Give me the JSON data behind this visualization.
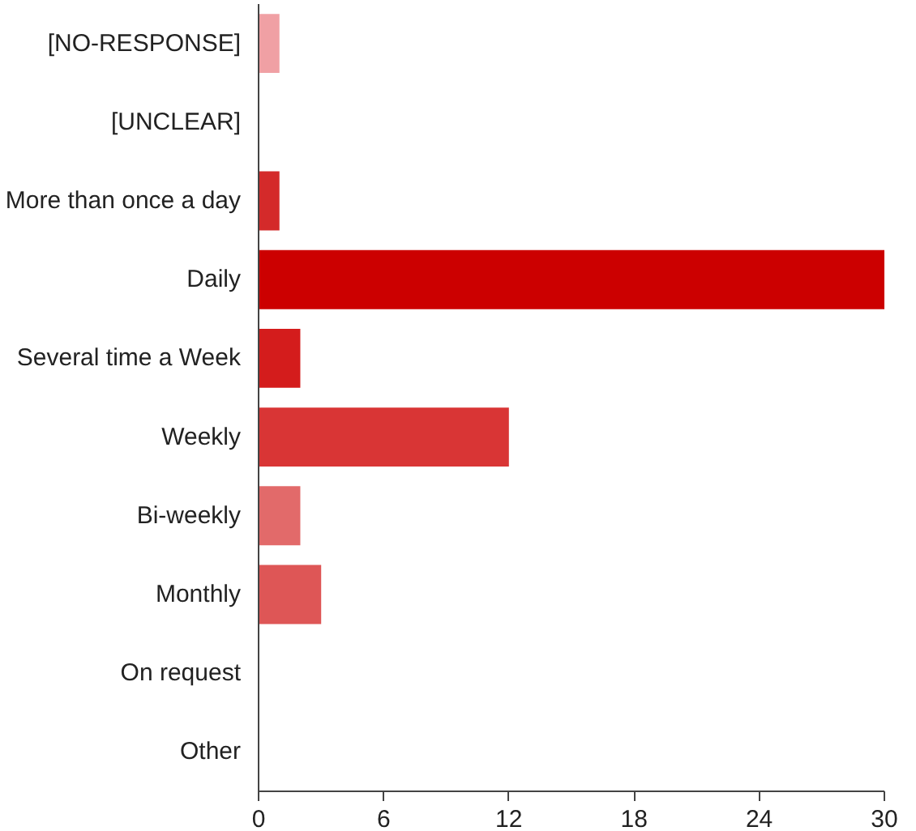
{
  "chart_data": {
    "type": "bar",
    "orientation": "horizontal",
    "categories": [
      "[NO-RESPONSE]",
      "[UNCLEAR]",
      "More than once a day",
      "Daily",
      "Several time a Week",
      "Weekly",
      "Bi-weekly",
      "Monthly",
      "On request",
      "Other"
    ],
    "values": [
      1,
      0,
      1,
      30,
      2,
      12,
      2,
      3,
      0,
      0
    ],
    "colors": [
      "#f0a0a4",
      "#e8b0b0",
      "#d42a2a",
      "#cc0000",
      "#d41c1c",
      "#d93535",
      "#e26a6a",
      "#de5656",
      "#e0a0a0",
      "#e0a0a0"
    ],
    "xlim": [
      0,
      30
    ],
    "xticks": [
      0,
      6,
      12,
      18,
      24,
      30
    ],
    "grid": false
  }
}
